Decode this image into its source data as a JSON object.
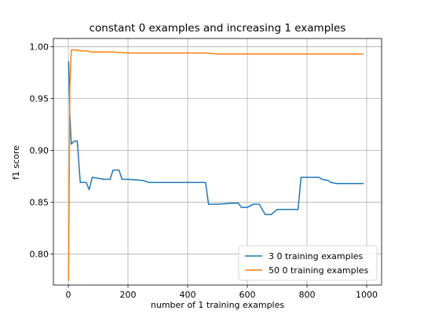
{
  "chart_data": {
    "type": "line",
    "title": "constant 0 examples and increasing 1 examples",
    "xlabel": "number of 1 training examples",
    "ylabel": "f1 score",
    "xlim": [
      -50,
      1050
    ],
    "ylim": [
      0.77,
      1.008
    ],
    "xticks": [
      0,
      200,
      400,
      600,
      800,
      1000
    ],
    "xtick_labels": [
      "0",
      "200",
      "400",
      "600",
      "800",
      "1000"
    ],
    "yticks": [
      0.8,
      0.85,
      0.9,
      0.95,
      1.0
    ],
    "ytick_labels": [
      "0.80",
      "0.85",
      "0.90",
      "0.95",
      "1.00"
    ],
    "grid": true,
    "legend_position": "lower-right",
    "series": [
      {
        "name": "3 0 training examples",
        "color": "#1f77b4",
        "x": [
          1,
          5,
          10,
          20,
          30,
          40,
          60,
          70,
          80,
          100,
          120,
          140,
          150,
          170,
          180,
          200,
          250,
          270,
          300,
          350,
          400,
          450,
          460,
          470,
          500,
          550,
          570,
          580,
          600,
          620,
          640,
          660,
          680,
          700,
          730,
          760,
          770,
          780,
          800,
          840,
          850,
          870,
          880,
          900,
          950,
          990
        ],
        "y": [
          0.986,
          0.935,
          0.906,
          0.909,
          0.909,
          0.869,
          0.869,
          0.862,
          0.874,
          0.873,
          0.872,
          0.872,
          0.881,
          0.881,
          0.872,
          0.872,
          0.871,
          0.869,
          0.869,
          0.869,
          0.869,
          0.869,
          0.869,
          0.848,
          0.848,
          0.849,
          0.849,
          0.845,
          0.845,
          0.848,
          0.848,
          0.838,
          0.838,
          0.843,
          0.843,
          0.843,
          0.843,
          0.874,
          0.874,
          0.874,
          0.872,
          0.871,
          0.869,
          0.868,
          0.868,
          0.868
        ]
      },
      {
        "name": "50 0 training examples",
        "color": "#ff7f0e",
        "x": [
          1,
          5,
          10,
          20,
          40,
          60,
          80,
          100,
          150,
          200,
          300,
          400,
          460,
          500,
          600,
          700,
          800,
          900,
          990
        ],
        "y": [
          0.774,
          0.96,
          0.997,
          0.997,
          0.996,
          0.996,
          0.995,
          0.995,
          0.995,
          0.994,
          0.994,
          0.994,
          0.994,
          0.993,
          0.993,
          0.993,
          0.993,
          0.993,
          0.993
        ]
      }
    ]
  }
}
